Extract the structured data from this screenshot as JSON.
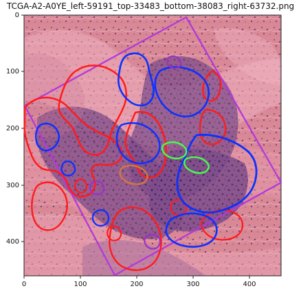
{
  "title": "TCGA-A2-A0YE_left-59191_top-33483_bottom-38083_right-63732.png",
  "image": {
    "kind": "histopathology-tile-with-annotation-overlay",
    "stain_colors": {
      "background": "#d98896",
      "stroma": "#e7a3b1",
      "tissue_dark": "#7f4f8d",
      "nuclei": "#3a235b"
    }
  },
  "axes": {
    "x_ticks": [
      "0",
      "100",
      "200",
      "300",
      "400"
    ],
    "y_ticks": [
      "0",
      "100",
      "200",
      "300",
      "400"
    ],
    "x_range": [
      0,
      455
    ],
    "y_range": [
      0,
      460
    ]
  },
  "overlay_colors": {
    "red": "#ff1b1b",
    "blue": "#0b31ff",
    "green": "#45ff45",
    "purple": "#9b30c8",
    "orange": "#d77a37",
    "magenta_roi": "#b438d9"
  }
}
